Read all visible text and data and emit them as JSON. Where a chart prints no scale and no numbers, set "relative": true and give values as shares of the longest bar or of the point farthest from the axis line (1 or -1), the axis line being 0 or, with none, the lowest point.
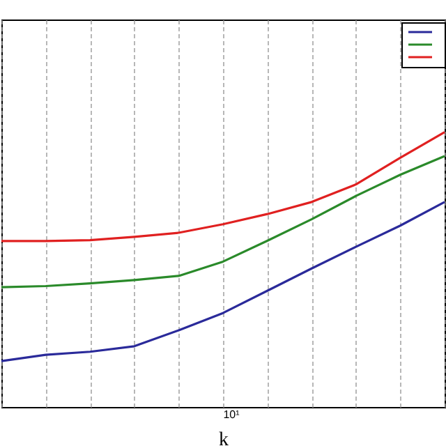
{
  "chart_data": {
    "type": "line",
    "xlabel": "k",
    "relative": true,
    "grid": true,
    "annotations": [
      "10¹"
    ],
    "categories": [
      null,
      null,
      null,
      null,
      null,
      null,
      null,
      null,
      null,
      null,
      null
    ],
    "series": [
      {
        "color": "#2a2a9a",
        "values": [
          0.167,
          0.19,
          0.201,
          0.221,
          0.279,
          0.342,
          0.423,
          0.504,
          0.583,
          0.66,
          0.746
        ]
      },
      {
        "color": "#2a8a2a",
        "values": [
          0.436,
          0.44,
          0.45,
          0.462,
          0.477,
          0.529,
          0.605,
          0.683,
          0.768,
          0.845,
          0.913
        ]
      },
      {
        "color": "#e02020",
        "values": [
          0.604,
          0.604,
          0.607,
          0.619,
          0.634,
          0.665,
          0.702,
          0.746,
          0.81,
          0.907,
          1
        ]
      }
    ]
  }
}
